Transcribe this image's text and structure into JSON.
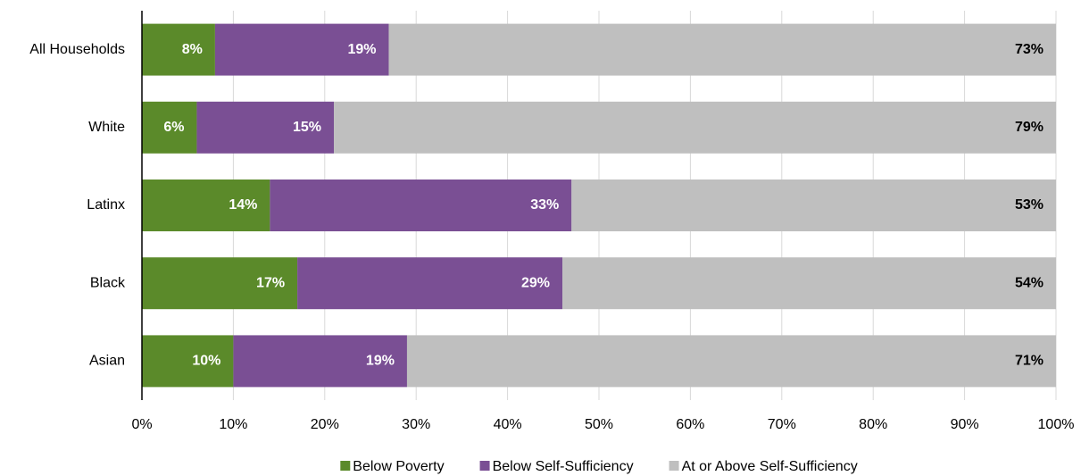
{
  "chart_data": {
    "type": "stacked-barh",
    "categories": [
      "All Households",
      "White",
      "Latinx",
      "Black",
      "Asian"
    ],
    "series": [
      {
        "name": "Below Poverty",
        "color": "#5b8a2a",
        "label_color": "#ffffff",
        "values": [
          8,
          6,
          14,
          17,
          10
        ],
        "value_labels": [
          "8%",
          "6%",
          "14%",
          "17%",
          "10%"
        ]
      },
      {
        "name": "Below Self-Sufficiency",
        "color": "#7a4f94",
        "label_color": "#ffffff",
        "values": [
          19,
          15,
          33,
          29,
          19
        ],
        "value_labels": [
          "19%",
          "15%",
          "33%",
          "29%",
          "19%"
        ]
      },
      {
        "name": "At or Above Self-Sufficiency",
        "color": "#bfbfbf",
        "label_color": "#000000",
        "values": [
          73,
          79,
          53,
          54,
          71
        ],
        "value_labels": [
          "73%",
          "79%",
          "53%",
          "54%",
          "71%"
        ]
      }
    ],
    "xlim": [
      0,
      100
    ],
    "xticks": [
      {
        "value": 0,
        "label": "0%"
      },
      {
        "value": 10,
        "label": "10%"
      },
      {
        "value": 20,
        "label": "20%"
      },
      {
        "value": 30,
        "label": "30%"
      },
      {
        "value": 40,
        "label": "40%"
      },
      {
        "value": 50,
        "label": "50%"
      },
      {
        "value": 60,
        "label": "60%"
      },
      {
        "value": 70,
        "label": "70%"
      },
      {
        "value": 80,
        "label": "80%"
      },
      {
        "value": 90,
        "label": "90%"
      },
      {
        "value": 100,
        "label": "100%"
      }
    ],
    "grid": true,
    "legend": "bottom"
  }
}
